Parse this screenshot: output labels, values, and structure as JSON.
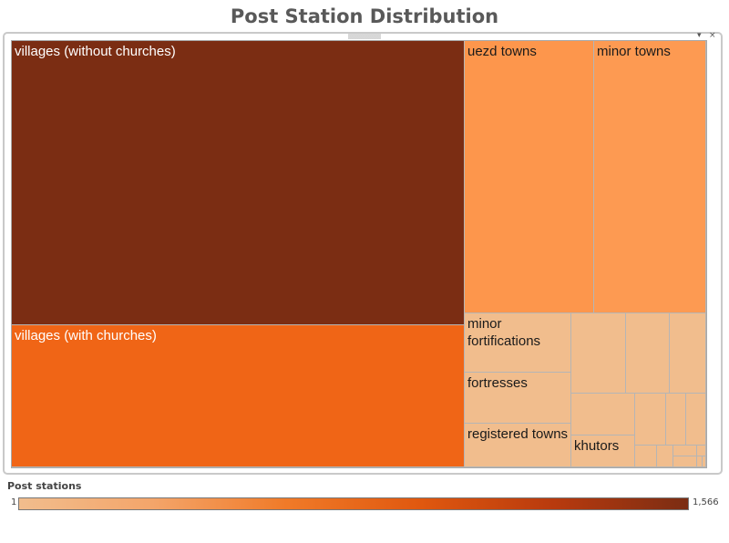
{
  "chart_data": {
    "type": "treemap",
    "title": "Post Station Distribution",
    "nodes": [
      {
        "name": "villages (without churches)",
        "value": 1566,
        "color": "#7b2d13"
      },
      {
        "name": "villages (with churches)",
        "value": 670,
        "color": "#f06516"
      },
      {
        "name": "uezd towns",
        "value": 430,
        "color": "#fd964c"
      },
      {
        "name": "minor towns",
        "value": 365,
        "color": "#fd9a52"
      },
      {
        "name": "minor fortifications",
        "value": 110,
        "color": "#f1bd8d"
      },
      {
        "name": "fortresses",
        "value": 90,
        "color": "#f1bd8d"
      },
      {
        "name": "registered towns",
        "value": 75,
        "color": "#f1bd8d"
      },
      {
        "name": "",
        "value": 70,
        "color": "#f1bd8d"
      },
      {
        "name": "",
        "value": 55,
        "color": "#f1bd8d"
      },
      {
        "name": "",
        "value": 43,
        "color": "#f1bd8d"
      },
      {
        "name": "",
        "value": 40,
        "color": "#f1bd8d"
      },
      {
        "name": "khutors",
        "value": 40,
        "color": "#f1bd8d"
      },
      {
        "name": "",
        "value": 30,
        "color": "#f1bd8d"
      },
      {
        "name": "",
        "value": 20,
        "color": "#f1bd8d"
      },
      {
        "name": "",
        "value": 17,
        "color": "#f1bd8d"
      },
      {
        "name": "",
        "value": 15,
        "color": "#f1bd8d"
      },
      {
        "name": "",
        "value": 10,
        "color": "#f1bd8d"
      },
      {
        "name": "",
        "value": 6,
        "color": "#f1bd8d"
      },
      {
        "name": "",
        "value": 5,
        "color": "#f1bd8d"
      },
      {
        "name": "",
        "value": 3,
        "color": "#f1bd8d"
      },
      {
        "name": "",
        "value": 2,
        "color": "#f1bd8d"
      },
      {
        "name": "",
        "value": 1,
        "color": "#f1bd8d"
      }
    ],
    "legend": {
      "title": "Post stations",
      "min_label": "1",
      "max_label": "1,566",
      "min": 1,
      "max": 1566,
      "colors": [
        "#f1bd8d",
        "#f4a56a",
        "#f07a28",
        "#e0580f",
        "#b83a0e",
        "#7b2d13"
      ]
    }
  },
  "panel": {
    "dropdown_icon": "chevron-down-icon",
    "close_icon": "close-icon",
    "dropdown_glyph": "▾",
    "close_glyph": "×"
  }
}
